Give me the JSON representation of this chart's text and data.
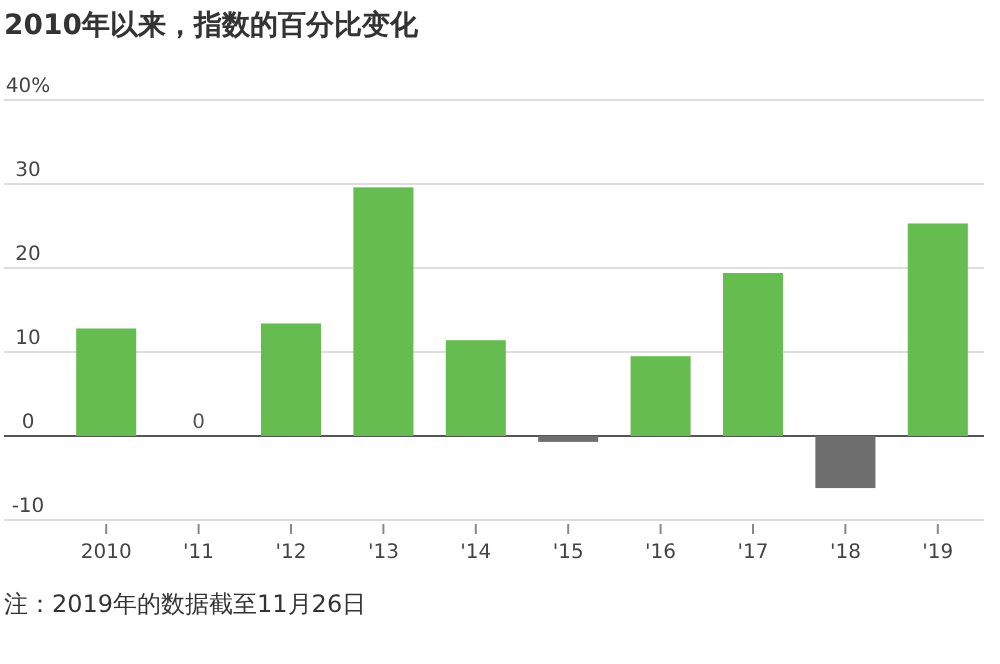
{
  "chart_data": {
    "type": "bar",
    "title": "2010年以来，指数的百分比变化",
    "categories": [
      "2010",
      "'11",
      "'12",
      "'13",
      "'14",
      "'15",
      "'16",
      "'17",
      "'18",
      "'19"
    ],
    "values": [
      12.8,
      0,
      13.4,
      29.6,
      11.4,
      -0.7,
      9.5,
      19.4,
      -6.2,
      25.3
    ],
    "colors": [
      "#65bd4f",
      "#65bd4f",
      "#65bd4f",
      "#65bd4f",
      "#65bd4f",
      "#6e6e6e",
      "#65bd4f",
      "#65bd4f",
      "#6e6e6e",
      "#65bd4f"
    ],
    "value_labels": [
      null,
      "0",
      null,
      null,
      null,
      null,
      null,
      null,
      null,
      null
    ],
    "ylim": [
      -10,
      40
    ],
    "yticks": [
      {
        "value": 40,
        "label": "40%"
      },
      30,
      20,
      10,
      0,
      -10
    ],
    "grid": "y",
    "annotations": [
      "注：2019年的数据截至11月26日"
    ]
  }
}
